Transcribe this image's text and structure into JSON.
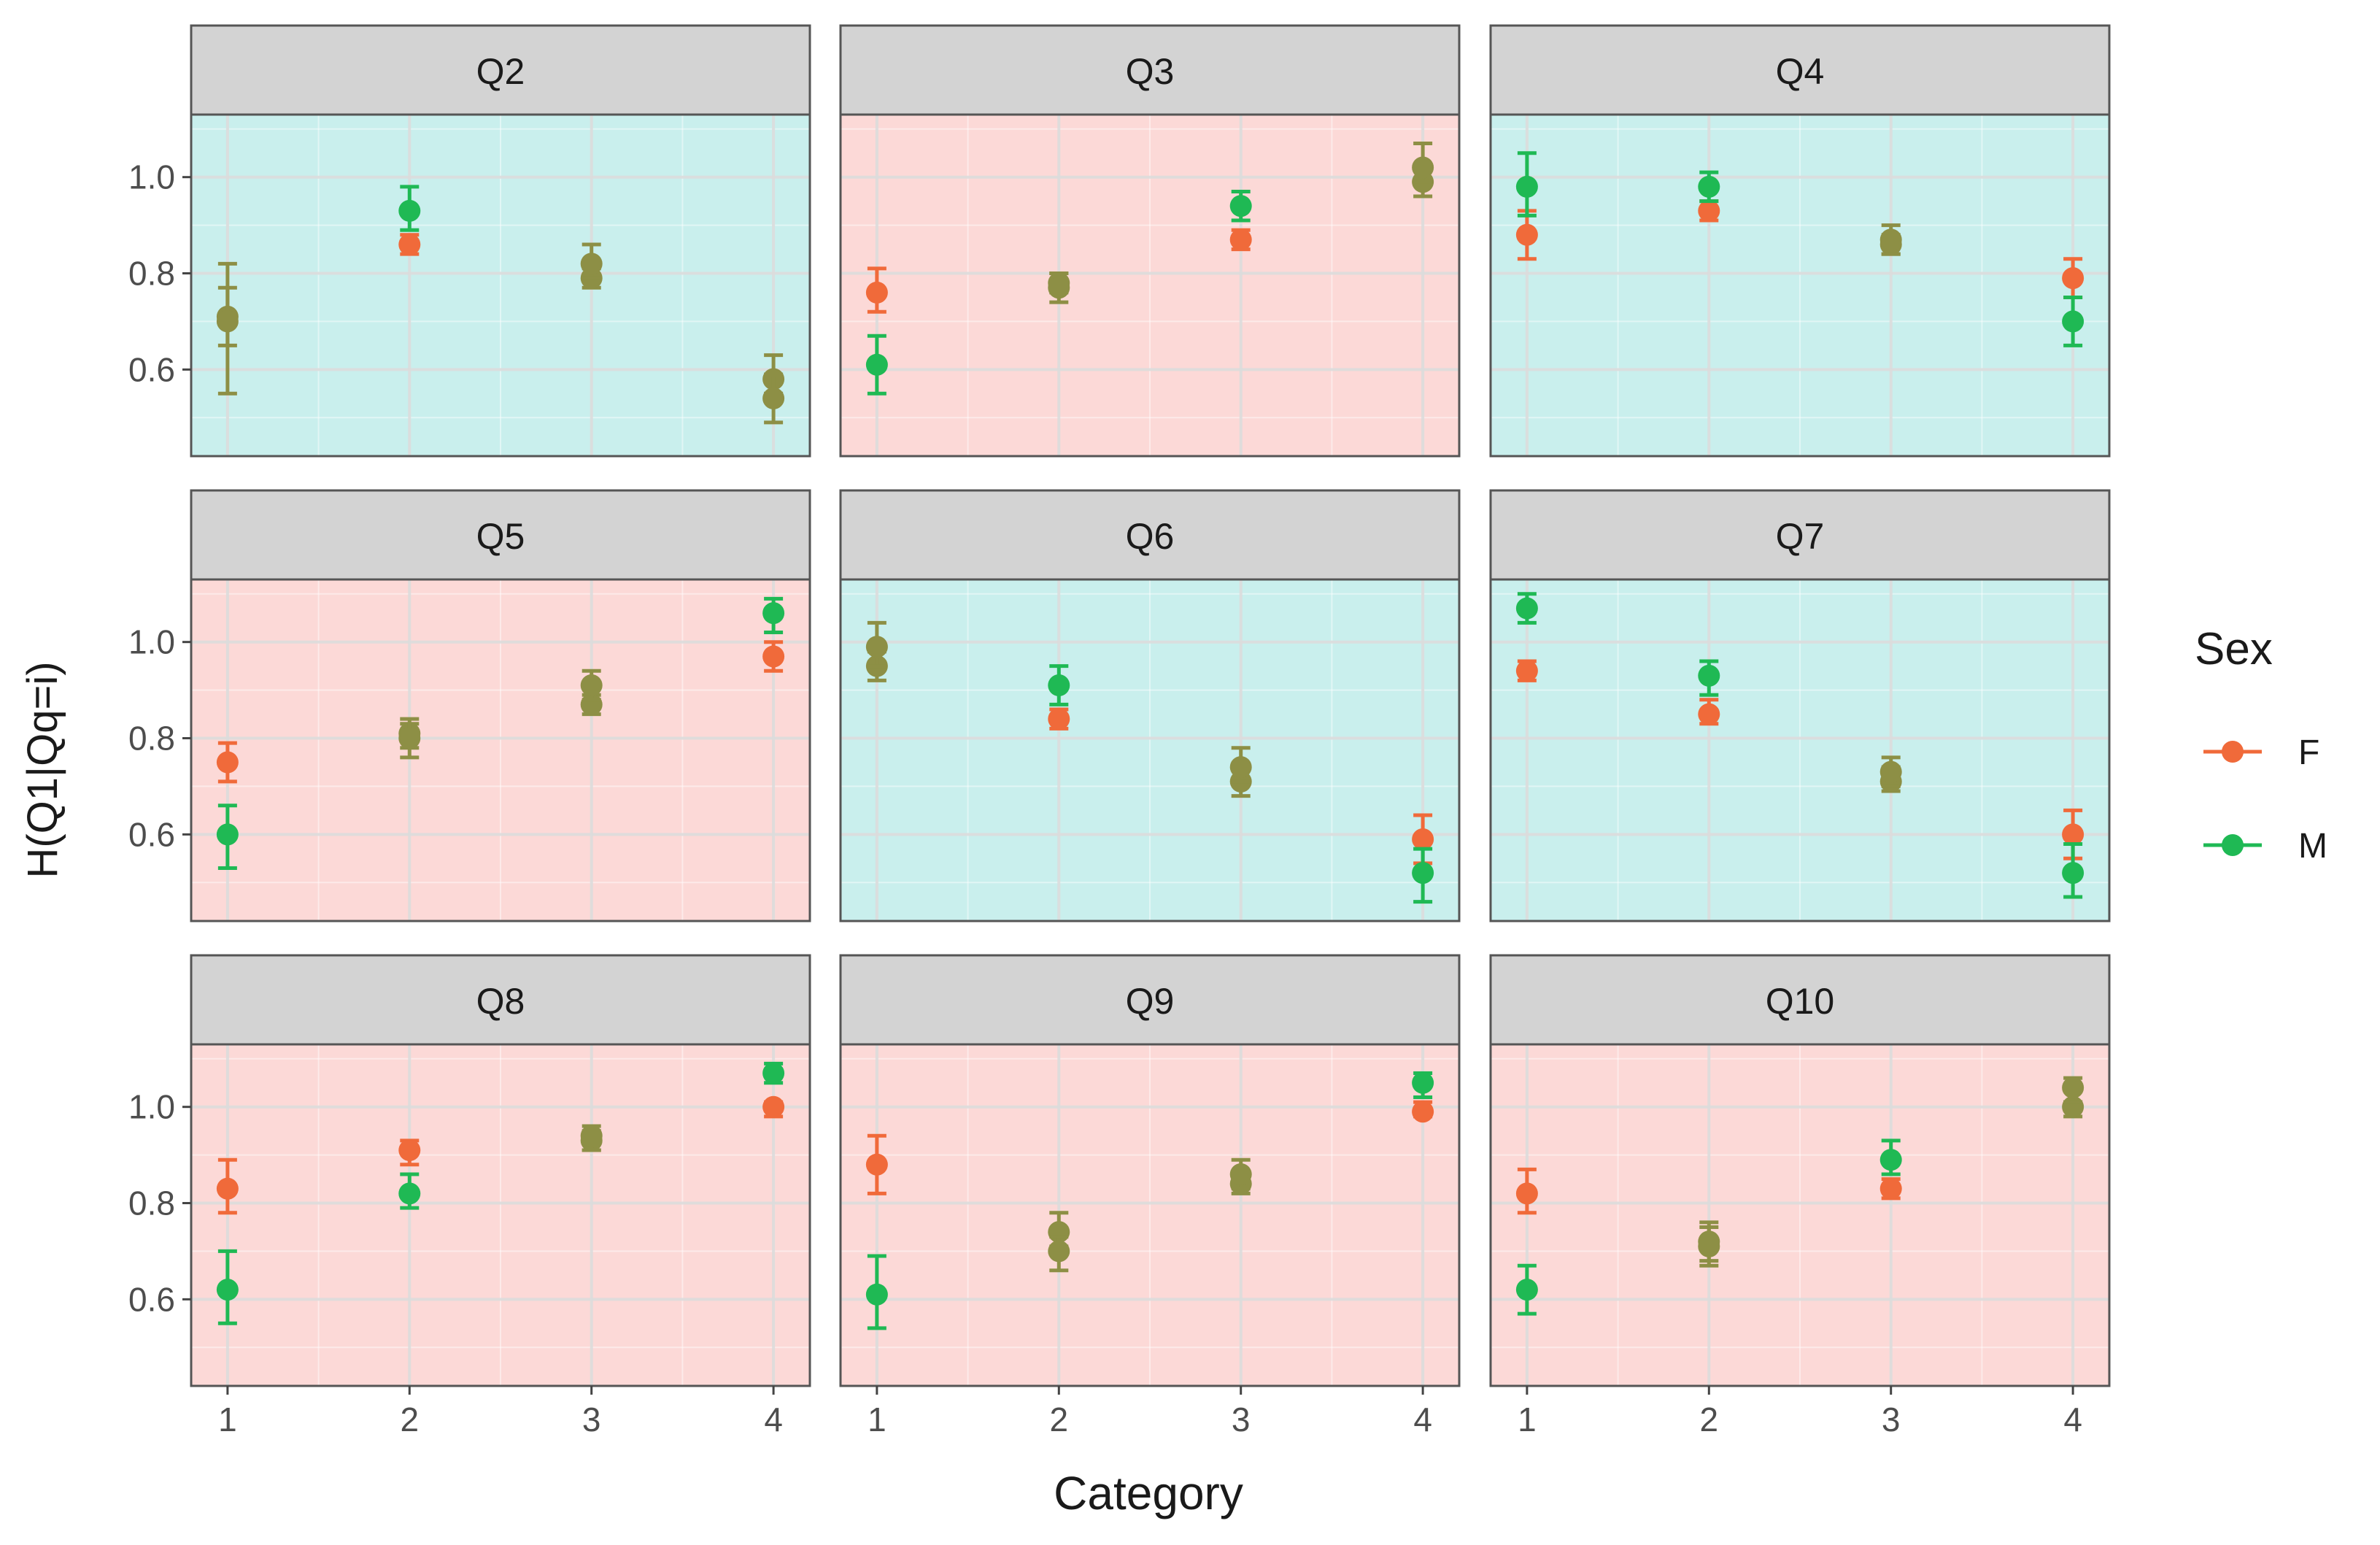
{
  "chart_data": {
    "type": "scatter",
    "subtype": "faceted point with error bars",
    "xlabel": "Category",
    "ylabel": "H(Q1|Qq=i)",
    "x_ticks": [
      "1",
      "2",
      "3",
      "4"
    ],
    "y_ticks": [
      "0.6",
      "0.8",
      "1.0"
    ],
    "xlim": [
      0.8,
      4.2
    ],
    "ylim": [
      0.42,
      1.13
    ],
    "grid": true,
    "legend": {
      "title": "Sex",
      "position": "right",
      "entries": [
        {
          "label": "F",
          "color": "#f06a3a"
        },
        {
          "label": "M",
          "color": "#1fb954"
        }
      ]
    },
    "colors": {
      "F": "#f06a3a",
      "M": "#1fb954",
      "overlap": "#8d8f45",
      "panel_teal": "#c9efed",
      "panel_pink": "#fcd9d7",
      "strip": "#d3d3d3"
    },
    "facets": [
      {
        "label": "Q2",
        "bg": "teal",
        "F": [
          {
            "x": 1,
            "y": 0.71,
            "lo": 0.65,
            "hi": 0.77
          },
          {
            "x": 2,
            "y": 0.86,
            "lo": 0.84,
            "hi": 0.88
          },
          {
            "x": 3,
            "y": 0.79,
            "lo": 0.77,
            "hi": 0.81
          },
          {
            "x": 4,
            "y": 0.58,
            "lo": 0.55,
            "hi": 0.63
          }
        ],
        "M": [
          {
            "x": 1,
            "y": 0.7,
            "lo": 0.55,
            "hi": 0.82
          },
          {
            "x": 2,
            "y": 0.93,
            "lo": 0.89,
            "hi": 0.98
          },
          {
            "x": 3,
            "y": 0.82,
            "lo": 0.79,
            "hi": 0.86
          },
          {
            "x": 4,
            "y": 0.54,
            "lo": 0.49,
            "hi": 0.59
          }
        ]
      },
      {
        "label": "Q3",
        "bg": "pink",
        "F": [
          {
            "x": 1,
            "y": 0.76,
            "lo": 0.72,
            "hi": 0.81
          },
          {
            "x": 2,
            "y": 0.78,
            "lo": 0.76,
            "hi": 0.8
          },
          {
            "x": 3,
            "y": 0.87,
            "lo": 0.85,
            "hi": 0.89
          },
          {
            "x": 4,
            "y": 0.99,
            "lo": 0.96,
            "hi": 1.02
          }
        ],
        "M": [
          {
            "x": 1,
            "y": 0.61,
            "lo": 0.55,
            "hi": 0.67
          },
          {
            "x": 2,
            "y": 0.77,
            "lo": 0.74,
            "hi": 0.8
          },
          {
            "x": 3,
            "y": 0.94,
            "lo": 0.91,
            "hi": 0.97
          },
          {
            "x": 4,
            "y": 1.02,
            "lo": 0.99,
            "hi": 1.07
          }
        ]
      },
      {
        "label": "Q4",
        "bg": "teal",
        "F": [
          {
            "x": 1,
            "y": 0.88,
            "lo": 0.83,
            "hi": 0.93
          },
          {
            "x": 2,
            "y": 0.93,
            "lo": 0.91,
            "hi": 0.95
          },
          {
            "x": 3,
            "y": 0.86,
            "lo": 0.84,
            "hi": 0.88
          },
          {
            "x": 4,
            "y": 0.79,
            "lo": 0.75,
            "hi": 0.83
          }
        ],
        "M": [
          {
            "x": 1,
            "y": 0.98,
            "lo": 0.92,
            "hi": 1.05
          },
          {
            "x": 2,
            "y": 0.98,
            "lo": 0.95,
            "hi": 1.01
          },
          {
            "x": 3,
            "y": 0.87,
            "lo": 0.84,
            "hi": 0.9
          },
          {
            "x": 4,
            "y": 0.7,
            "lo": 0.65,
            "hi": 0.75
          }
        ]
      },
      {
        "label": "Q5",
        "bg": "pink",
        "F": [
          {
            "x": 1,
            "y": 0.75,
            "lo": 0.71,
            "hi": 0.79
          },
          {
            "x": 2,
            "y": 0.81,
            "lo": 0.78,
            "hi": 0.83
          },
          {
            "x": 3,
            "y": 0.87,
            "lo": 0.85,
            "hi": 0.89
          },
          {
            "x": 4,
            "y": 0.97,
            "lo": 0.94,
            "hi": 1.0
          }
        ],
        "M": [
          {
            "x": 1,
            "y": 0.6,
            "lo": 0.53,
            "hi": 0.66
          },
          {
            "x": 2,
            "y": 0.8,
            "lo": 0.76,
            "hi": 0.84
          },
          {
            "x": 3,
            "y": 0.91,
            "lo": 0.88,
            "hi": 0.94
          },
          {
            "x": 4,
            "y": 1.06,
            "lo": 1.02,
            "hi": 1.09
          }
        ]
      },
      {
        "label": "Q6",
        "bg": "teal",
        "F": [
          {
            "x": 1,
            "y": 0.95,
            "lo": 0.92,
            "hi": 0.98
          },
          {
            "x": 2,
            "y": 0.84,
            "lo": 0.82,
            "hi": 0.86
          },
          {
            "x": 3,
            "y": 0.71,
            "lo": 0.68,
            "hi": 0.74
          },
          {
            "x": 4,
            "y": 0.59,
            "lo": 0.54,
            "hi": 0.64
          }
        ],
        "M": [
          {
            "x": 1,
            "y": 0.99,
            "lo": 0.95,
            "hi": 1.04
          },
          {
            "x": 2,
            "y": 0.91,
            "lo": 0.87,
            "hi": 0.95
          },
          {
            "x": 3,
            "y": 0.74,
            "lo": 0.71,
            "hi": 0.78
          },
          {
            "x": 4,
            "y": 0.52,
            "lo": 0.46,
            "hi": 0.57
          }
        ]
      },
      {
        "label": "Q7",
        "bg": "teal",
        "F": [
          {
            "x": 1,
            "y": 0.94,
            "lo": 0.92,
            "hi": 0.96
          },
          {
            "x": 2,
            "y": 0.85,
            "lo": 0.83,
            "hi": 0.88
          },
          {
            "x": 3,
            "y": 0.71,
            "lo": 0.69,
            "hi": 0.74
          },
          {
            "x": 4,
            "y": 0.6,
            "lo": 0.55,
            "hi": 0.65
          }
        ],
        "M": [
          {
            "x": 1,
            "y": 1.07,
            "lo": 1.04,
            "hi": 1.1
          },
          {
            "x": 2,
            "y": 0.93,
            "lo": 0.89,
            "hi": 0.96
          },
          {
            "x": 3,
            "y": 0.73,
            "lo": 0.7,
            "hi": 0.76
          },
          {
            "x": 4,
            "y": 0.52,
            "lo": 0.47,
            "hi": 0.58
          }
        ]
      },
      {
        "label": "Q8",
        "bg": "pink",
        "F": [
          {
            "x": 1,
            "y": 0.83,
            "lo": 0.78,
            "hi": 0.89
          },
          {
            "x": 2,
            "y": 0.91,
            "lo": 0.88,
            "hi": 0.93
          },
          {
            "x": 3,
            "y": 0.93,
            "lo": 0.91,
            "hi": 0.95
          },
          {
            "x": 4,
            "y": 1.0,
            "lo": 0.98,
            "hi": 1.01
          }
        ],
        "M": [
          {
            "x": 1,
            "y": 0.62,
            "lo": 0.55,
            "hi": 0.7
          },
          {
            "x": 2,
            "y": 0.82,
            "lo": 0.79,
            "hi": 0.86
          },
          {
            "x": 3,
            "y": 0.94,
            "lo": 0.91,
            "hi": 0.96
          },
          {
            "x": 4,
            "y": 1.07,
            "lo": 1.05,
            "hi": 1.09
          }
        ]
      },
      {
        "label": "Q9",
        "bg": "pink",
        "F": [
          {
            "x": 1,
            "y": 0.88,
            "lo": 0.82,
            "hi": 0.94
          },
          {
            "x": 2,
            "y": 0.74,
            "lo": 0.71,
            "hi": 0.78
          },
          {
            "x": 3,
            "y": 0.84,
            "lo": 0.82,
            "hi": 0.86
          },
          {
            "x": 4,
            "y": 0.99,
            "lo": 0.98,
            "hi": 1.01
          }
        ],
        "M": [
          {
            "x": 1,
            "y": 0.61,
            "lo": 0.54,
            "hi": 0.69
          },
          {
            "x": 2,
            "y": 0.7,
            "lo": 0.66,
            "hi": 0.73
          },
          {
            "x": 3,
            "y": 0.86,
            "lo": 0.83,
            "hi": 0.89
          },
          {
            "x": 4,
            "y": 1.05,
            "lo": 1.02,
            "hi": 1.07
          }
        ]
      },
      {
        "label": "Q10",
        "bg": "pink",
        "F": [
          {
            "x": 1,
            "y": 0.82,
            "lo": 0.78,
            "hi": 0.87
          },
          {
            "x": 2,
            "y": 0.71,
            "lo": 0.67,
            "hi": 0.75
          },
          {
            "x": 3,
            "y": 0.83,
            "lo": 0.81,
            "hi": 0.85
          },
          {
            "x": 4,
            "y": 1.0,
            "lo": 0.98,
            "hi": 1.01
          }
        ],
        "M": [
          {
            "x": 1,
            "y": 0.62,
            "lo": 0.57,
            "hi": 0.67
          },
          {
            "x": 2,
            "y": 0.72,
            "lo": 0.68,
            "hi": 0.76
          },
          {
            "x": 3,
            "y": 0.89,
            "lo": 0.86,
            "hi": 0.93
          },
          {
            "x": 4,
            "y": 1.04,
            "lo": 1.01,
            "hi": 1.06
          }
        ]
      }
    ]
  }
}
